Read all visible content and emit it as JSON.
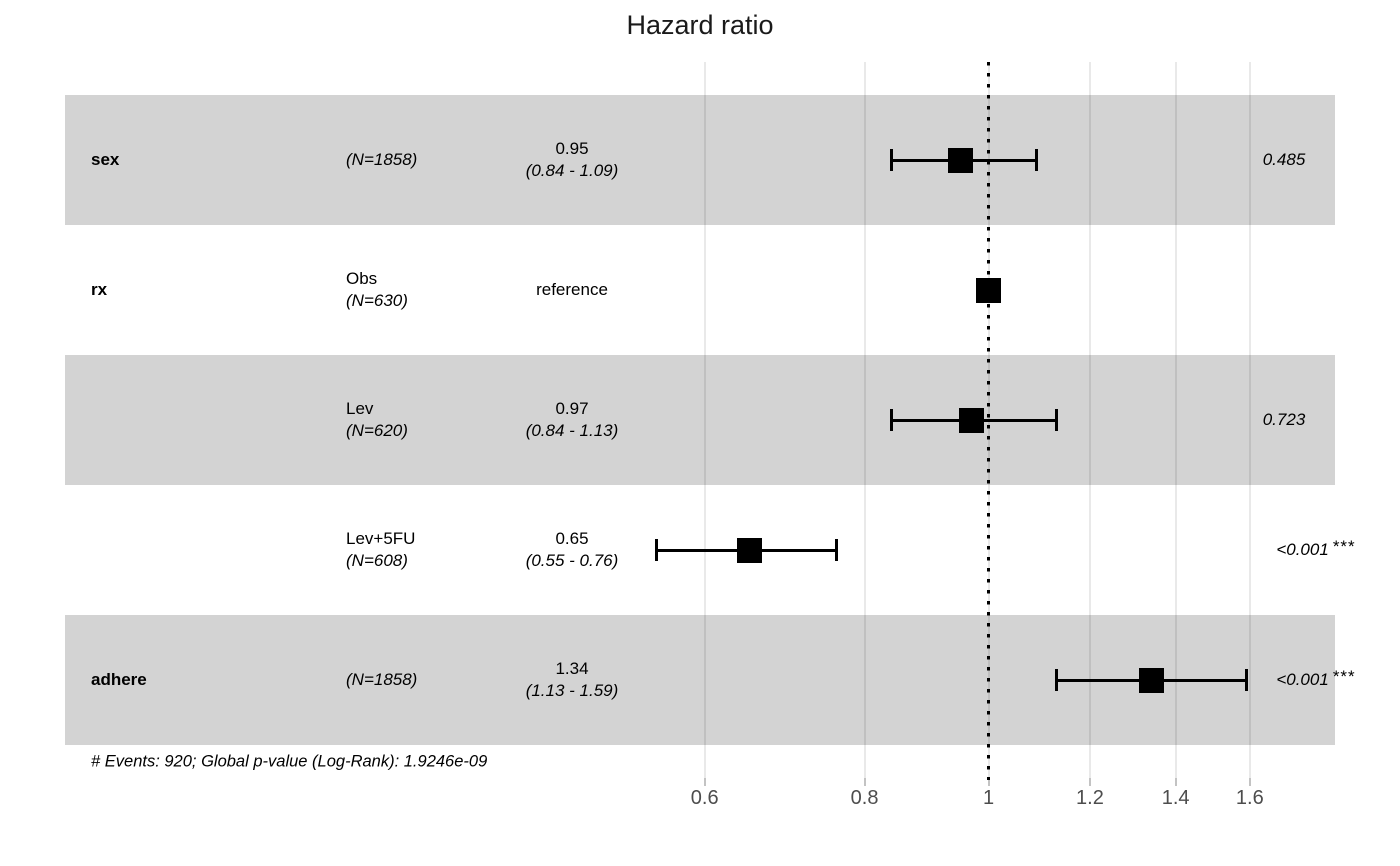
{
  "title": "Hazard ratio",
  "footer": "# Events: 920; Global p-value (Log-Rank): 1.9246e-09",
  "colors": {
    "background": "#ffffff",
    "band": "#d3d3d3",
    "grid": "rgba(0,0,0,0.085)",
    "tick": "#c3c3c3",
    "axis_text": "#4d4d4d",
    "marker": "#000000"
  },
  "chart_data": {
    "type": "forest",
    "title": "Hazard ratio",
    "x_scale": "log",
    "x_tick_labels": [
      "0.6",
      "0.8",
      "1",
      "1.2",
      "1.4",
      "1.6"
    ],
    "x_tick_values": [
      0.6,
      0.8,
      1.0,
      1.2,
      1.4,
      1.6
    ],
    "reference_line": 1,
    "caption": "# Events: 920; Global p-value (Log-Rank): 1.9246e-09",
    "rows": [
      {
        "variable": "sex",
        "level": "",
        "n_label": "(N=1858)",
        "estimate_label": "0.95",
        "ci_label": "(0.84 - 1.09)",
        "hr": 0.95,
        "ci_low": 0.84,
        "ci_high": 1.09,
        "p_value": "0.485",
        "stars": "",
        "shaded": true,
        "reference": false
      },
      {
        "variable": "rx",
        "level": "Obs",
        "n_label": "(N=630)",
        "estimate_label": "reference",
        "ci_label": "",
        "hr": 1,
        "ci_low": null,
        "ci_high": null,
        "p_value": "",
        "stars": "",
        "shaded": false,
        "reference": true
      },
      {
        "variable": "",
        "level": "Lev",
        "n_label": "(N=620)",
        "estimate_label": "0.97",
        "ci_label": "(0.84 - 1.13)",
        "hr": 0.97,
        "ci_low": 0.84,
        "ci_high": 1.13,
        "p_value": "0.723",
        "stars": "",
        "shaded": true,
        "reference": false
      },
      {
        "variable": "",
        "level": "Lev+5FU",
        "n_label": "(N=608)",
        "estimate_label": "0.65",
        "ci_label": "(0.55 - 0.76)",
        "hr": 0.65,
        "ci_low": 0.55,
        "ci_high": 0.76,
        "p_value": "<0.001",
        "stars": "***",
        "shaded": false,
        "reference": false
      },
      {
        "variable": "adhere",
        "level": "",
        "n_label": "(N=1858)",
        "estimate_label": "1.34",
        "ci_label": "(1.13 - 1.59)",
        "hr": 1.34,
        "ci_low": 1.13,
        "ci_high": 1.59,
        "p_value": "<0.001",
        "stars": "***",
        "shaded": true,
        "reference": false
      }
    ]
  }
}
